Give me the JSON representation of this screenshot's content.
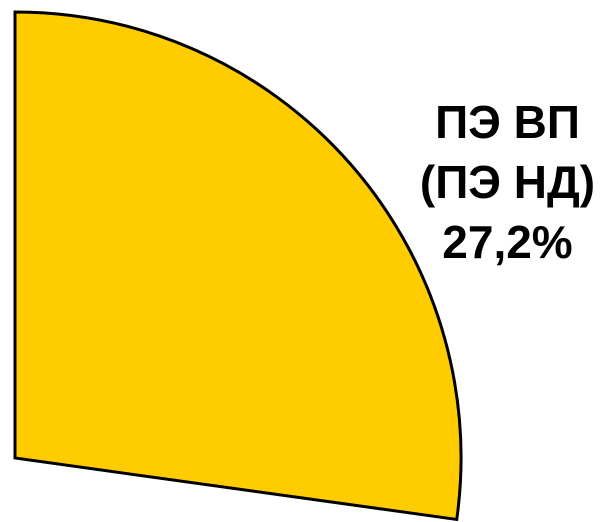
{
  "chart_data": {
    "type": "pie",
    "categories": [
      "ПЭ ВП (ПЭ НД)"
    ],
    "values": [
      27.2
    ],
    "value_labels": [
      "27,2%"
    ],
    "colors": [
      "#ffcc00"
    ]
  }
}
